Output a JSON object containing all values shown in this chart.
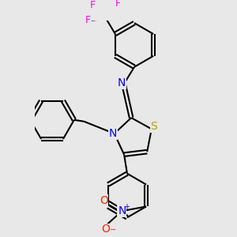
{
  "background_color": "#e8e8e8",
  "atom_colors": {
    "C": "#000000",
    "N": "#0000ff",
    "S": "#b8a000",
    "O": "#ff2200",
    "F": "#ff00ff",
    "H": "#000000"
  },
  "bond_color": "#000000",
  "bond_width": 1.5,
  "dbo": 0.012,
  "font_size_atom": 10
}
